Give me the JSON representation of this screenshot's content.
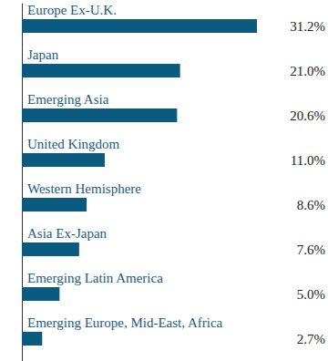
{
  "chart_data": {
    "type": "bar",
    "orientation": "horizontal",
    "categories": [
      "Europe Ex-U.K.",
      "Japan",
      "Emerging Asia",
      "United Kingdom",
      "Western Hemisphere",
      "Asia Ex-Japan",
      "Emerging Latin America",
      "Emerging Europe, Mid-East, Africa"
    ],
    "values": [
      31.2,
      21.0,
      20.6,
      11.0,
      8.6,
      7.6,
      5.0,
      2.7
    ],
    "value_labels": [
      "31.2%",
      "21.0%",
      "20.6%",
      "11.0%",
      "8.6%",
      "7.6%",
      "5.0%",
      "2.7%"
    ],
    "data_labels": true,
    "color": "#0b5a80",
    "xlim": [
      0,
      31.2
    ],
    "grid": false,
    "tick_labels": false
  }
}
